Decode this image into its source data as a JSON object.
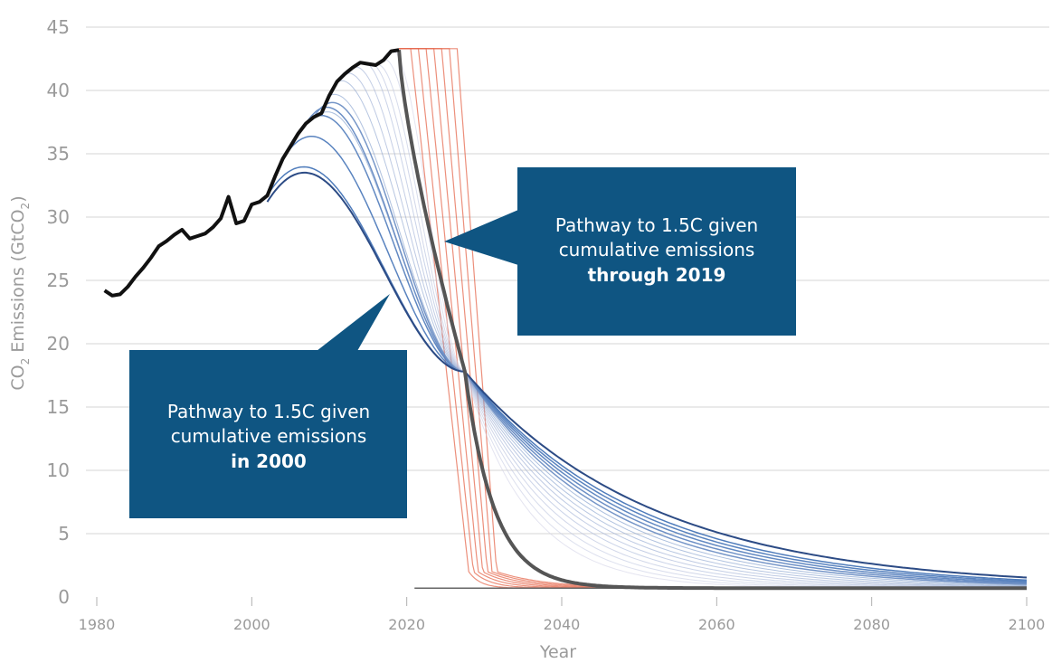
{
  "chart_data": {
    "type": "line",
    "xlabel": "Year",
    "ylabel": {
      "pre": "CO",
      "sub": "2",
      "mid": " Emissions (GtCO",
      "sub2": "2",
      "post": ")"
    },
    "xlim": [
      1980,
      2100
    ],
    "ylim": [
      0,
      45
    ],
    "x_ticks": [
      1980,
      2000,
      2020,
      2040,
      2060,
      2080,
      2100
    ],
    "y_ticks": [
      0,
      5,
      10,
      15,
      20,
      25,
      30,
      35,
      40,
      45
    ],
    "grid": "horizontal",
    "historical": {
      "name": "",
      "color": "#111111",
      "points": [
        [
          1981,
          24.2
        ],
        [
          1982,
          23.8
        ],
        [
          1983,
          23.9
        ],
        [
          1984,
          24.5
        ],
        [
          1985,
          25.3
        ],
        [
          1986,
          26.0
        ],
        [
          1987,
          26.8
        ],
        [
          1988,
          27.7
        ],
        [
          1989,
          28.1
        ],
        [
          1990,
          28.6
        ],
        [
          1991,
          29.0
        ],
        [
          1992,
          28.3
        ],
        [
          1993,
          28.5
        ],
        [
          1994,
          28.7
        ],
        [
          1995,
          29.2
        ],
        [
          1996,
          29.9
        ],
        [
          1997,
          31.6
        ],
        [
          1998,
          29.5
        ],
        [
          1999,
          29.7
        ],
        [
          2000,
          31.0
        ],
        [
          2001,
          31.2
        ],
        [
          2002,
          31.7
        ],
        [
          2003,
          33.2
        ],
        [
          2004,
          34.6
        ],
        [
          2005,
          35.6
        ],
        [
          2006,
          36.6
        ],
        [
          2007,
          37.4
        ],
        [
          2008,
          37.9
        ],
        [
          2009,
          38.2
        ],
        [
          2010,
          39.6
        ],
        [
          2011,
          40.7
        ],
        [
          2012,
          41.3
        ],
        [
          2013,
          41.8
        ],
        [
          2014,
          42.2
        ],
        [
          2015,
          42.1
        ],
        [
          2016,
          42.0
        ],
        [
          2017,
          42.4
        ],
        [
          2018,
          43.1
        ],
        [
          2019,
          43.2
        ]
      ]
    },
    "pathway_2000": {
      "color": "#2c4b85",
      "peak_year": 2002,
      "peak_value": 31.2
    },
    "pathway_2019": {
      "color": "#555555",
      "peak_year": 2019,
      "peak_value": 43.2
    },
    "crossover": {
      "year": 2027.5,
      "value": 17.8
    },
    "blue_pathway_start_years": [
      2002,
      2004,
      2006,
      2007,
      2008,
      2009,
      2010,
      2011,
      2012,
      2013,
      2014,
      2015,
      2016,
      2017,
      2018
    ],
    "red_pathway_start_years": [
      2020,
      2021,
      2022,
      2023,
      2024,
      2025,
      2026
    ],
    "red_plateau_value": 43.3,
    "floor_value": 0.7,
    "end_values_2100": [
      1.3,
      1.2,
      1.1,
      1.0,
      0.9
    ]
  },
  "callouts": [
    {
      "line1": "Pathway to 1.5C given",
      "line2": "cumulative emissions",
      "line3": "through 2019",
      "color": "#0f5582"
    },
    {
      "line1": "Pathway to 1.5C given",
      "line2": "cumulative emissions",
      "line3": "in 2000",
      "color": "#0f5582"
    }
  ]
}
